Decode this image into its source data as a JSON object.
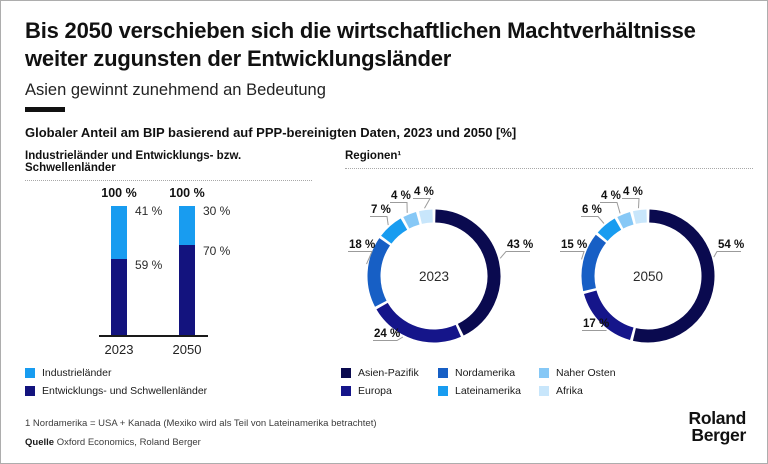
{
  "header": {
    "title": "Bis 2050 verschieben sich die wirtschaftlichen Machtverhältnisse weiter zugunsten der Entwicklungsländer",
    "subtitle": "Asien gewinnt zunehmend an Bedeutung"
  },
  "chart_heading": "Globaler Anteil am BIP basierend auf PPP-bereinigten Daten, 2023 und 2050 [%]",
  "panels": {
    "left_title": "Industrieländer und Entwicklungs- bzw. Schwellenländer",
    "right_title": "Regionen¹"
  },
  "chart_data": [
    {
      "type": "bar",
      "subtype": "stacked-100",
      "title": "Industrieländer und Entwicklungs- bzw. Schwellenländer",
      "categories": [
        "2023",
        "2050"
      ],
      "total_label": "100 %",
      "unit": "%",
      "series": [
        {
          "name": "Industrieländer",
          "color": "#189CF0",
          "values": [
            41,
            30
          ]
        },
        {
          "name": "Entwicklungs- und Schwellenländer",
          "color": "#13137E",
          "values": [
            59,
            70
          ]
        }
      ],
      "legend_position": "bottom-left"
    },
    {
      "type": "pie",
      "subtype": "donut-pair",
      "title": "Regionen",
      "footnote_ref": "1",
      "center_labels": [
        "2023",
        "2050"
      ],
      "unit": "%",
      "segments": [
        {
          "name": "Asien-Pazifik",
          "color": "#0A0A4F",
          "values": [
            43,
            54
          ]
        },
        {
          "name": "Europa",
          "color": "#15158A",
          "values": [
            24,
            17
          ]
        },
        {
          "name": "Nordamerika",
          "color": "#175FC5",
          "values": [
            18,
            15
          ]
        },
        {
          "name": "Lateinamerika",
          "color": "#189CF0",
          "values": [
            7,
            6
          ]
        },
        {
          "name": "Naher Osten",
          "color": "#86C8F6",
          "values": [
            4,
            4
          ]
        },
        {
          "name": "Afrika",
          "color": "#C8E6FB",
          "values": [
            4,
            4
          ]
        }
      ],
      "legend_position": "bottom"
    }
  ],
  "footnote": "1 Nordamerika = USA + Kanada (Mexiko wird als Teil von Lateinamerika betrachtet)",
  "source": {
    "label": "Quelle",
    "text": "Oxford Economics, Roland Berger"
  },
  "logo": {
    "line1": "Roland",
    "line2": "Berger"
  }
}
